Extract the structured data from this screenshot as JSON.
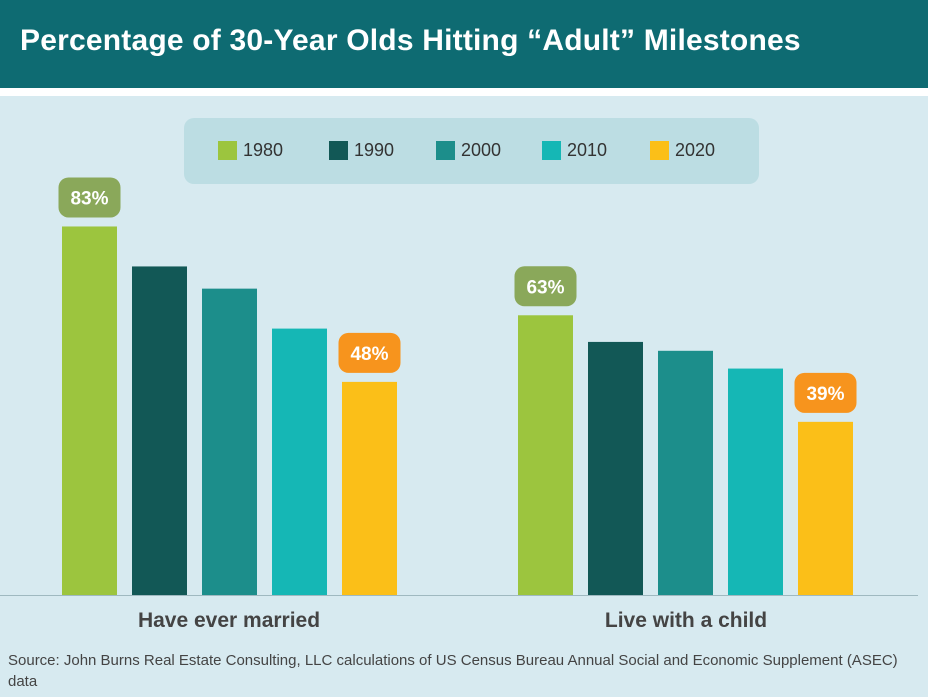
{
  "title": "Percentage of 30-Year Olds Hitting “Adult” Milestones",
  "legend": [
    {
      "label": "1980",
      "color": "#9cc53e"
    },
    {
      "label": "1990",
      "color": "#125856"
    },
    {
      "label": "2000",
      "color": "#1c8e8b"
    },
    {
      "label": "2010",
      "color": "#15b7b5"
    },
    {
      "label": "2020",
      "color": "#fbbf18"
    }
  ],
  "source": "Source: John Burns Real Estate Consulting, LLC calculations of US Census Bureau Annual Social and Economic Supplement (ASEC) data",
  "chart_data": {
    "type": "bar",
    "title": "Percentage of 30-Year Olds Hitting “Adult” Milestones",
    "categories": [
      "Have ever married",
      "Live with a child"
    ],
    "series": [
      {
        "name": "1980",
        "color": "#9cc53e",
        "values": [
          83,
          63
        ]
      },
      {
        "name": "1990",
        "color": "#125856",
        "values": [
          74,
          57
        ]
      },
      {
        "name": "2000",
        "color": "#1c8e8b",
        "values": [
          69,
          55
        ]
      },
      {
        "name": "2010",
        "color": "#15b7b5",
        "values": [
          60,
          51
        ]
      },
      {
        "name": "2020",
        "color": "#fbbf18",
        "values": [
          48,
          39
        ]
      }
    ],
    "data_labels": [
      {
        "series": "1980",
        "category": "Have ever married",
        "text": "83%",
        "color": "#8aa85a"
      },
      {
        "series": "2020",
        "category": "Have ever married",
        "text": "48%",
        "color": "#f7941d"
      },
      {
        "series": "1980",
        "category": "Live with a child",
        "text": "63%",
        "color": "#8aa85a"
      },
      {
        "series": "2020",
        "category": "Live with a child",
        "text": "39%",
        "color": "#f7941d"
      }
    ],
    "ylim": [
      0,
      100
    ],
    "grid": false,
    "legend_position": "top-center"
  }
}
